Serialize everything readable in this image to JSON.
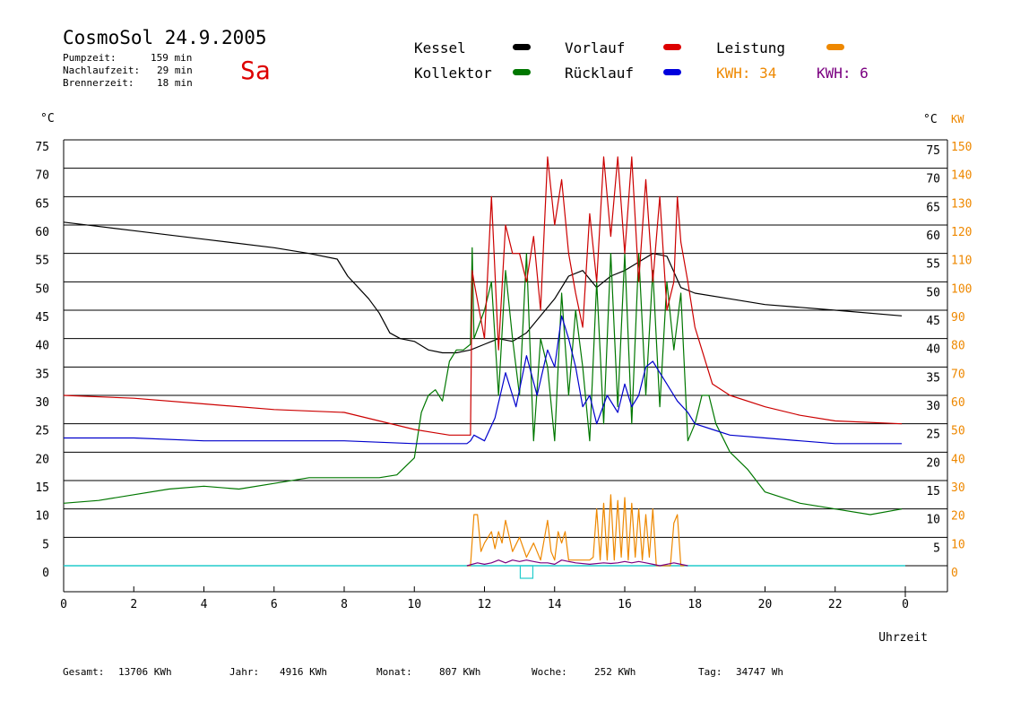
{
  "header": {
    "title": "CosmoSol 24.9.2005",
    "day": "Sa",
    "pumpzeit_label": "Pumpzeit:",
    "pumpzeit_value": "159 min",
    "nachlauf_label": "Nachlaufzeit:",
    "nachlauf_value": "29 min",
    "brenner_label": "Brennerzeit:",
    "brenner_value": "18 min"
  },
  "legend": {
    "kessel": "Kessel",
    "kollektor": "Kollektor",
    "vorlauf": "Vorlauf",
    "ruecklauf": "Rücklauf",
    "leistung": "Leistung",
    "kwh_orange": "KWH: 34",
    "kwh_purple": "KWH: 6"
  },
  "colors": {
    "kessel": "#000000",
    "kollektor": "#007700",
    "vorlauf": "#cc0000",
    "ruecklauf": "#0000cc",
    "leistung": "#ee8800",
    "kwh2": "#7a0080",
    "baseline": "#22cccc"
  },
  "footer": {
    "gesamt_label": "Gesamt:",
    "gesamt_value": "13706 KWh",
    "jahr_label": "Jahr:",
    "jahr_value": "4916 KWh",
    "monat_label": "Monat:",
    "monat_value": "807 KWh",
    "woche_label": "Woche:",
    "woche_value": "252 KWh",
    "tag_label": "Tag:",
    "tag_value": "34747 Wh"
  },
  "chart_data": {
    "type": "line",
    "xlabel": "Uhrzeit",
    "ylabel_left": "°C",
    "ylabel_right_temp": "°C",
    "ylabel_right_power": "KW",
    "xlim": [
      0,
      24
    ],
    "ylim": [
      0,
      75
    ],
    "ylim_power": [
      0,
      150
    ],
    "grid": true,
    "x_ticks": [
      "0",
      "2",
      "4",
      "6",
      "8",
      "10",
      "12",
      "14",
      "16",
      "18",
      "20",
      "22",
      "0"
    ],
    "y_ticks": [
      "0",
      "5",
      "10",
      "15",
      "20",
      "25",
      "30",
      "35",
      "40",
      "45",
      "50",
      "55",
      "60",
      "65",
      "70",
      "75"
    ],
    "y_ticks_right": [
      "5",
      "10",
      "15",
      "20",
      "25",
      "30",
      "35",
      "40",
      "45",
      "50",
      "55",
      "60",
      "65",
      "70",
      "75"
    ],
    "y_ticks_power": [
      "0",
      "10",
      "20",
      "30",
      "40",
      "50",
      "60",
      "70",
      "80",
      "90",
      "100",
      "110",
      "120",
      "130",
      "140",
      "150"
    ],
    "series": [
      {
        "name": "Kessel",
        "color": "#000000",
        "x": [
          0,
          2,
          4,
          6,
          7,
          7.8,
          8.1,
          8.4,
          8.7,
          9,
          9.3,
          9.6,
          10,
          10.4,
          10.8,
          11.2,
          11.6,
          12,
          12.4,
          12.8,
          13.2,
          13.6,
          14,
          14.4,
          14.8,
          15.2,
          15.6,
          16,
          16.4,
          16.8,
          17.2,
          17.6,
          18,
          19,
          20,
          21,
          22,
          23.9
        ],
        "y": [
          60.5,
          59,
          57.5,
          56,
          55,
          54,
          51,
          49,
          47,
          44.5,
          41,
          40,
          39.5,
          38,
          37.5,
          37.5,
          38,
          39,
          40,
          39.5,
          41,
          44,
          47,
          51,
          52,
          49,
          51,
          52,
          53.5,
          55,
          54.5,
          49,
          48,
          47,
          46,
          45.5,
          45,
          44
        ]
      },
      {
        "name": "Kollektor",
        "color": "#007700",
        "x": [
          0,
          1,
          2,
          3,
          4,
          5,
          6,
          7,
          8,
          9,
          9.5,
          10,
          10.2,
          10.4,
          10.6,
          10.8,
          11,
          11.2,
          11.4,
          11.6,
          11.65,
          11.7,
          12,
          12.2,
          12.4,
          12.6,
          12.8,
          13,
          13.2,
          13.4,
          13.6,
          13.8,
          14,
          14.2,
          14.4,
          14.6,
          14.8,
          15,
          15.2,
          15.4,
          15.6,
          15.8,
          16,
          16.2,
          16.4,
          16.6,
          16.8,
          17,
          17.2,
          17.4,
          17.6,
          17.8,
          18,
          18.2,
          18.4,
          18.6,
          19,
          19.5,
          20,
          21,
          22,
          23,
          23.9
        ],
        "y": [
          11,
          11.5,
          12.5,
          13.5,
          14,
          13.5,
          14.5,
          15.5,
          15.5,
          15.5,
          16,
          19,
          27,
          30,
          31,
          29,
          36,
          38,
          38,
          39,
          56,
          40,
          45,
          50,
          30,
          52,
          40,
          30,
          55,
          22,
          40,
          35,
          22,
          48,
          30,
          45,
          35,
          22,
          50,
          25,
          55,
          28,
          55,
          25,
          55,
          30,
          52,
          28,
          50,
          38,
          48,
          22,
          25,
          30,
          30,
          25,
          20,
          17,
          13,
          11,
          10,
          9,
          10
        ]
      },
      {
        "name": "Vorlauf",
        "color": "#cc0000",
        "x": [
          0,
          2,
          4,
          6,
          8,
          9,
          10,
          10.5,
          11,
          11.5,
          11.6,
          11.65,
          11.7,
          12,
          12.2,
          12.4,
          12.6,
          12.8,
          13,
          13.2,
          13.4,
          13.6,
          13.8,
          14,
          14.2,
          14.4,
          14.6,
          14.8,
          15,
          15.2,
          15.4,
          15.6,
          15.8,
          16,
          16.2,
          16.4,
          16.6,
          16.8,
          17,
          17.2,
          17.4,
          17.5,
          17.6,
          17.8,
          18,
          18.5,
          19,
          20,
          21,
          22,
          23.9
        ],
        "y": [
          30,
          29.5,
          28.5,
          27.5,
          27,
          25.5,
          24,
          23.5,
          23,
          23,
          23,
          52,
          50,
          40,
          65,
          38,
          60,
          55,
          55,
          50,
          58,
          45,
          72,
          60,
          68,
          55,
          48,
          42,
          62,
          50,
          72,
          58,
          72,
          55,
          72,
          50,
          68,
          50,
          65,
          45,
          50,
          65,
          57,
          50,
          42,
          32,
          30,
          28,
          26.5,
          25.5,
          25
        ]
      },
      {
        "name": "Rücklauf",
        "color": "#0000cc",
        "x": [
          0,
          2,
          4,
          6,
          8,
          10,
          11,
          11.5,
          11.6,
          11.7,
          12,
          12.3,
          12.6,
          12.9,
          13.2,
          13.5,
          13.8,
          14,
          14.2,
          14.4,
          14.6,
          14.8,
          15,
          15.2,
          15.5,
          15.8,
          16,
          16.2,
          16.4,
          16.6,
          16.8,
          17,
          17.2,
          17.5,
          17.8,
          18,
          18.5,
          19,
          20,
          21,
          22,
          23.9
        ],
        "y": [
          22.5,
          22.5,
          22,
          22,
          22,
          21.5,
          21.5,
          21.5,
          22,
          23,
          22,
          26,
          34,
          28,
          37,
          30,
          38,
          35,
          44,
          40,
          35,
          28,
          30,
          25,
          30,
          27,
          32,
          28,
          30,
          35,
          36,
          34,
          32,
          29,
          27,
          25,
          24,
          23,
          22.5,
          22,
          21.5,
          21.5
        ]
      },
      {
        "name": "Leistung",
        "color": "#ee8800",
        "x": [
          11.5,
          11.6,
          11.7,
          11.8,
          11.9,
          12,
          12.2,
          12.3,
          12.4,
          12.5,
          12.6,
          12.8,
          13,
          13.2,
          13.4,
          13.6,
          13.8,
          13.9,
          14,
          14.1,
          14.2,
          14.3,
          14.4,
          15,
          15.1,
          15.2,
          15.3,
          15.4,
          15.5,
          15.6,
          15.7,
          15.8,
          15.9,
          16,
          16.1,
          16.2,
          16.3,
          16.4,
          16.5,
          16.6,
          16.7,
          16.8,
          16.9,
          17,
          17.1,
          17.3,
          17.4,
          17.5,
          17.6,
          17.7
        ],
        "y": [
          0,
          0,
          18,
          18,
          5,
          8,
          12,
          6,
          12,
          8,
          16,
          5,
          10,
          3,
          8,
          2,
          16,
          5,
          2,
          12,
          8,
          12,
          2,
          2,
          3,
          20,
          2,
          22,
          2,
          25,
          2,
          23,
          3,
          24,
          2,
          22,
          3,
          20,
          2,
          18,
          3,
          20,
          0,
          0,
          0,
          0,
          15,
          18,
          0,
          0
        ]
      },
      {
        "name": "KWH",
        "color": "#7a0080",
        "x": [
          11.5,
          11.8,
          12,
          12.2,
          12.4,
          12.6,
          12.8,
          13,
          13.2,
          13.4,
          13.6,
          13.8,
          14,
          14.2,
          14.4,
          14.6,
          15,
          15.4,
          15.6,
          15.8,
          16,
          16.2,
          16.4,
          16.6,
          16.8,
          17,
          17.4,
          17.6,
          17.8
        ],
        "y": [
          0,
          1,
          0.5,
          1,
          2,
          1,
          2,
          1.5,
          2,
          1.5,
          1,
          1,
          0.5,
          2,
          1.5,
          1,
          0.5,
          1,
          0.8,
          1,
          1.5,
          1,
          1.5,
          1,
          0.5,
          0,
          1,
          0.5,
          0
        ]
      }
    ]
  }
}
